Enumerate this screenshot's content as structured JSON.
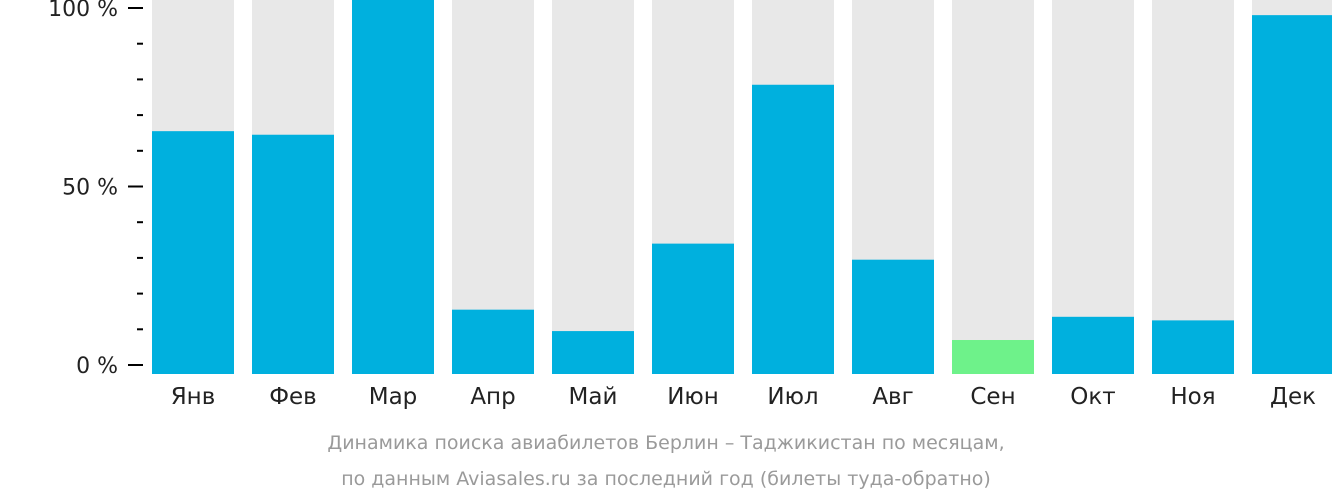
{
  "chart_data": {
    "type": "bar",
    "categories": [
      "Янв",
      "Фев",
      "Мар",
      "Апр",
      "Май",
      "Июн",
      "Июл",
      "Авг",
      "Сен",
      "Окт",
      "Ноя",
      "Дек"
    ],
    "values": [
      65.5,
      64.5,
      100,
      15.5,
      9.5,
      34,
      78.5,
      29.5,
      7,
      13.5,
      12.5,
      98
    ],
    "ylim": [
      0,
      100
    ],
    "yticks": [
      "0 %",
      "50 %",
      "100 %"
    ],
    "highlight_index": 8,
    "colors": {
      "bar": "#00b0de",
      "highlight": "#6ef28a",
      "background_bar": "#e8e8e8",
      "axis": "#000000",
      "caption": "#9a9a9a"
    }
  },
  "caption": {
    "line1": "Динамика поиска авиабилетов Берлин – Таджикистан по месяцам,",
    "line2": "по данным Aviasales.ru за последний год (билеты туда-обратно)"
  }
}
